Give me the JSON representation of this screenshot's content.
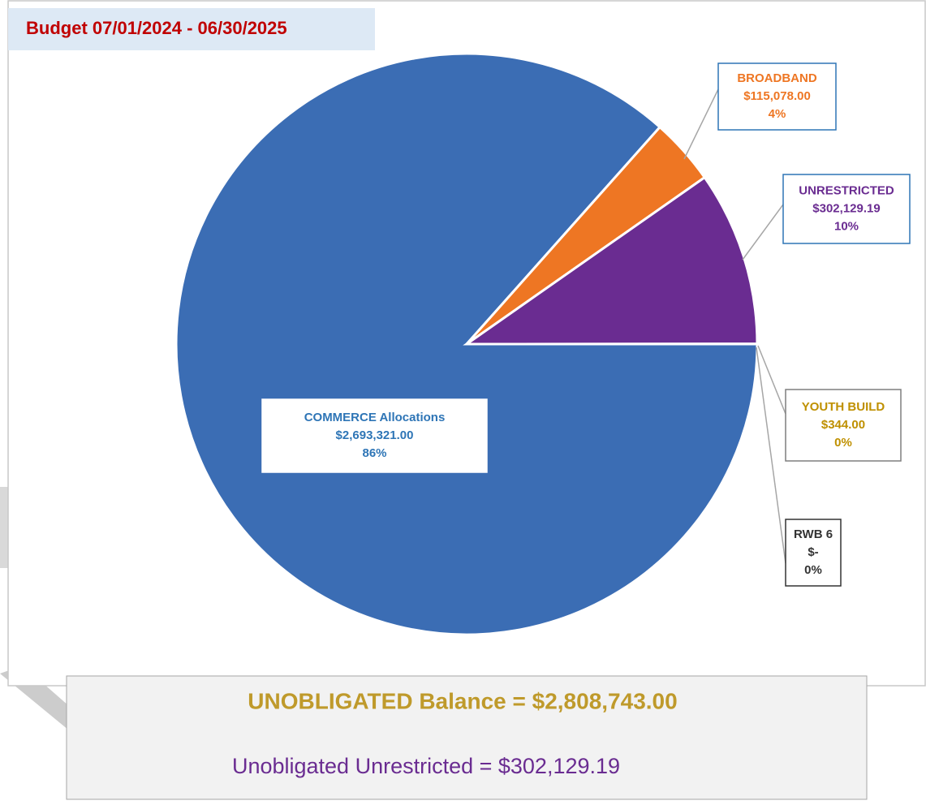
{
  "chart_data": {
    "type": "pie",
    "title": "Budget 07/01/2024 - 06/30/2025",
    "categories": [
      "COMMERCE Allocations",
      "BROADBAND",
      "UNRESTRICTED",
      "YOUTH BUILD",
      "RWB 6"
    ],
    "values": [
      2693321.0,
      115078.0,
      302129.19,
      344.0,
      0
    ],
    "value_labels": [
      "$2,693,321.00",
      "$115,078.00",
      "$302,129.19",
      "$344.00",
      "$-"
    ],
    "percent_labels": [
      "86%",
      "4%",
      "10%",
      "0%",
      "0%"
    ],
    "colors": [
      "#3b6db4",
      "#ee7623",
      "#6a2c91",
      "#c09a2b",
      "#7f7f7f"
    ],
    "label_colors": [
      "#2e75b6",
      "#ee7623",
      "#6a2c91",
      "#bf9000",
      "#333333"
    ]
  },
  "footer": {
    "balance": "UNOBLIGATED Balance = $2,808,743.00",
    "unrestricted": "Unobligated Unrestricted = $302,129.19"
  }
}
